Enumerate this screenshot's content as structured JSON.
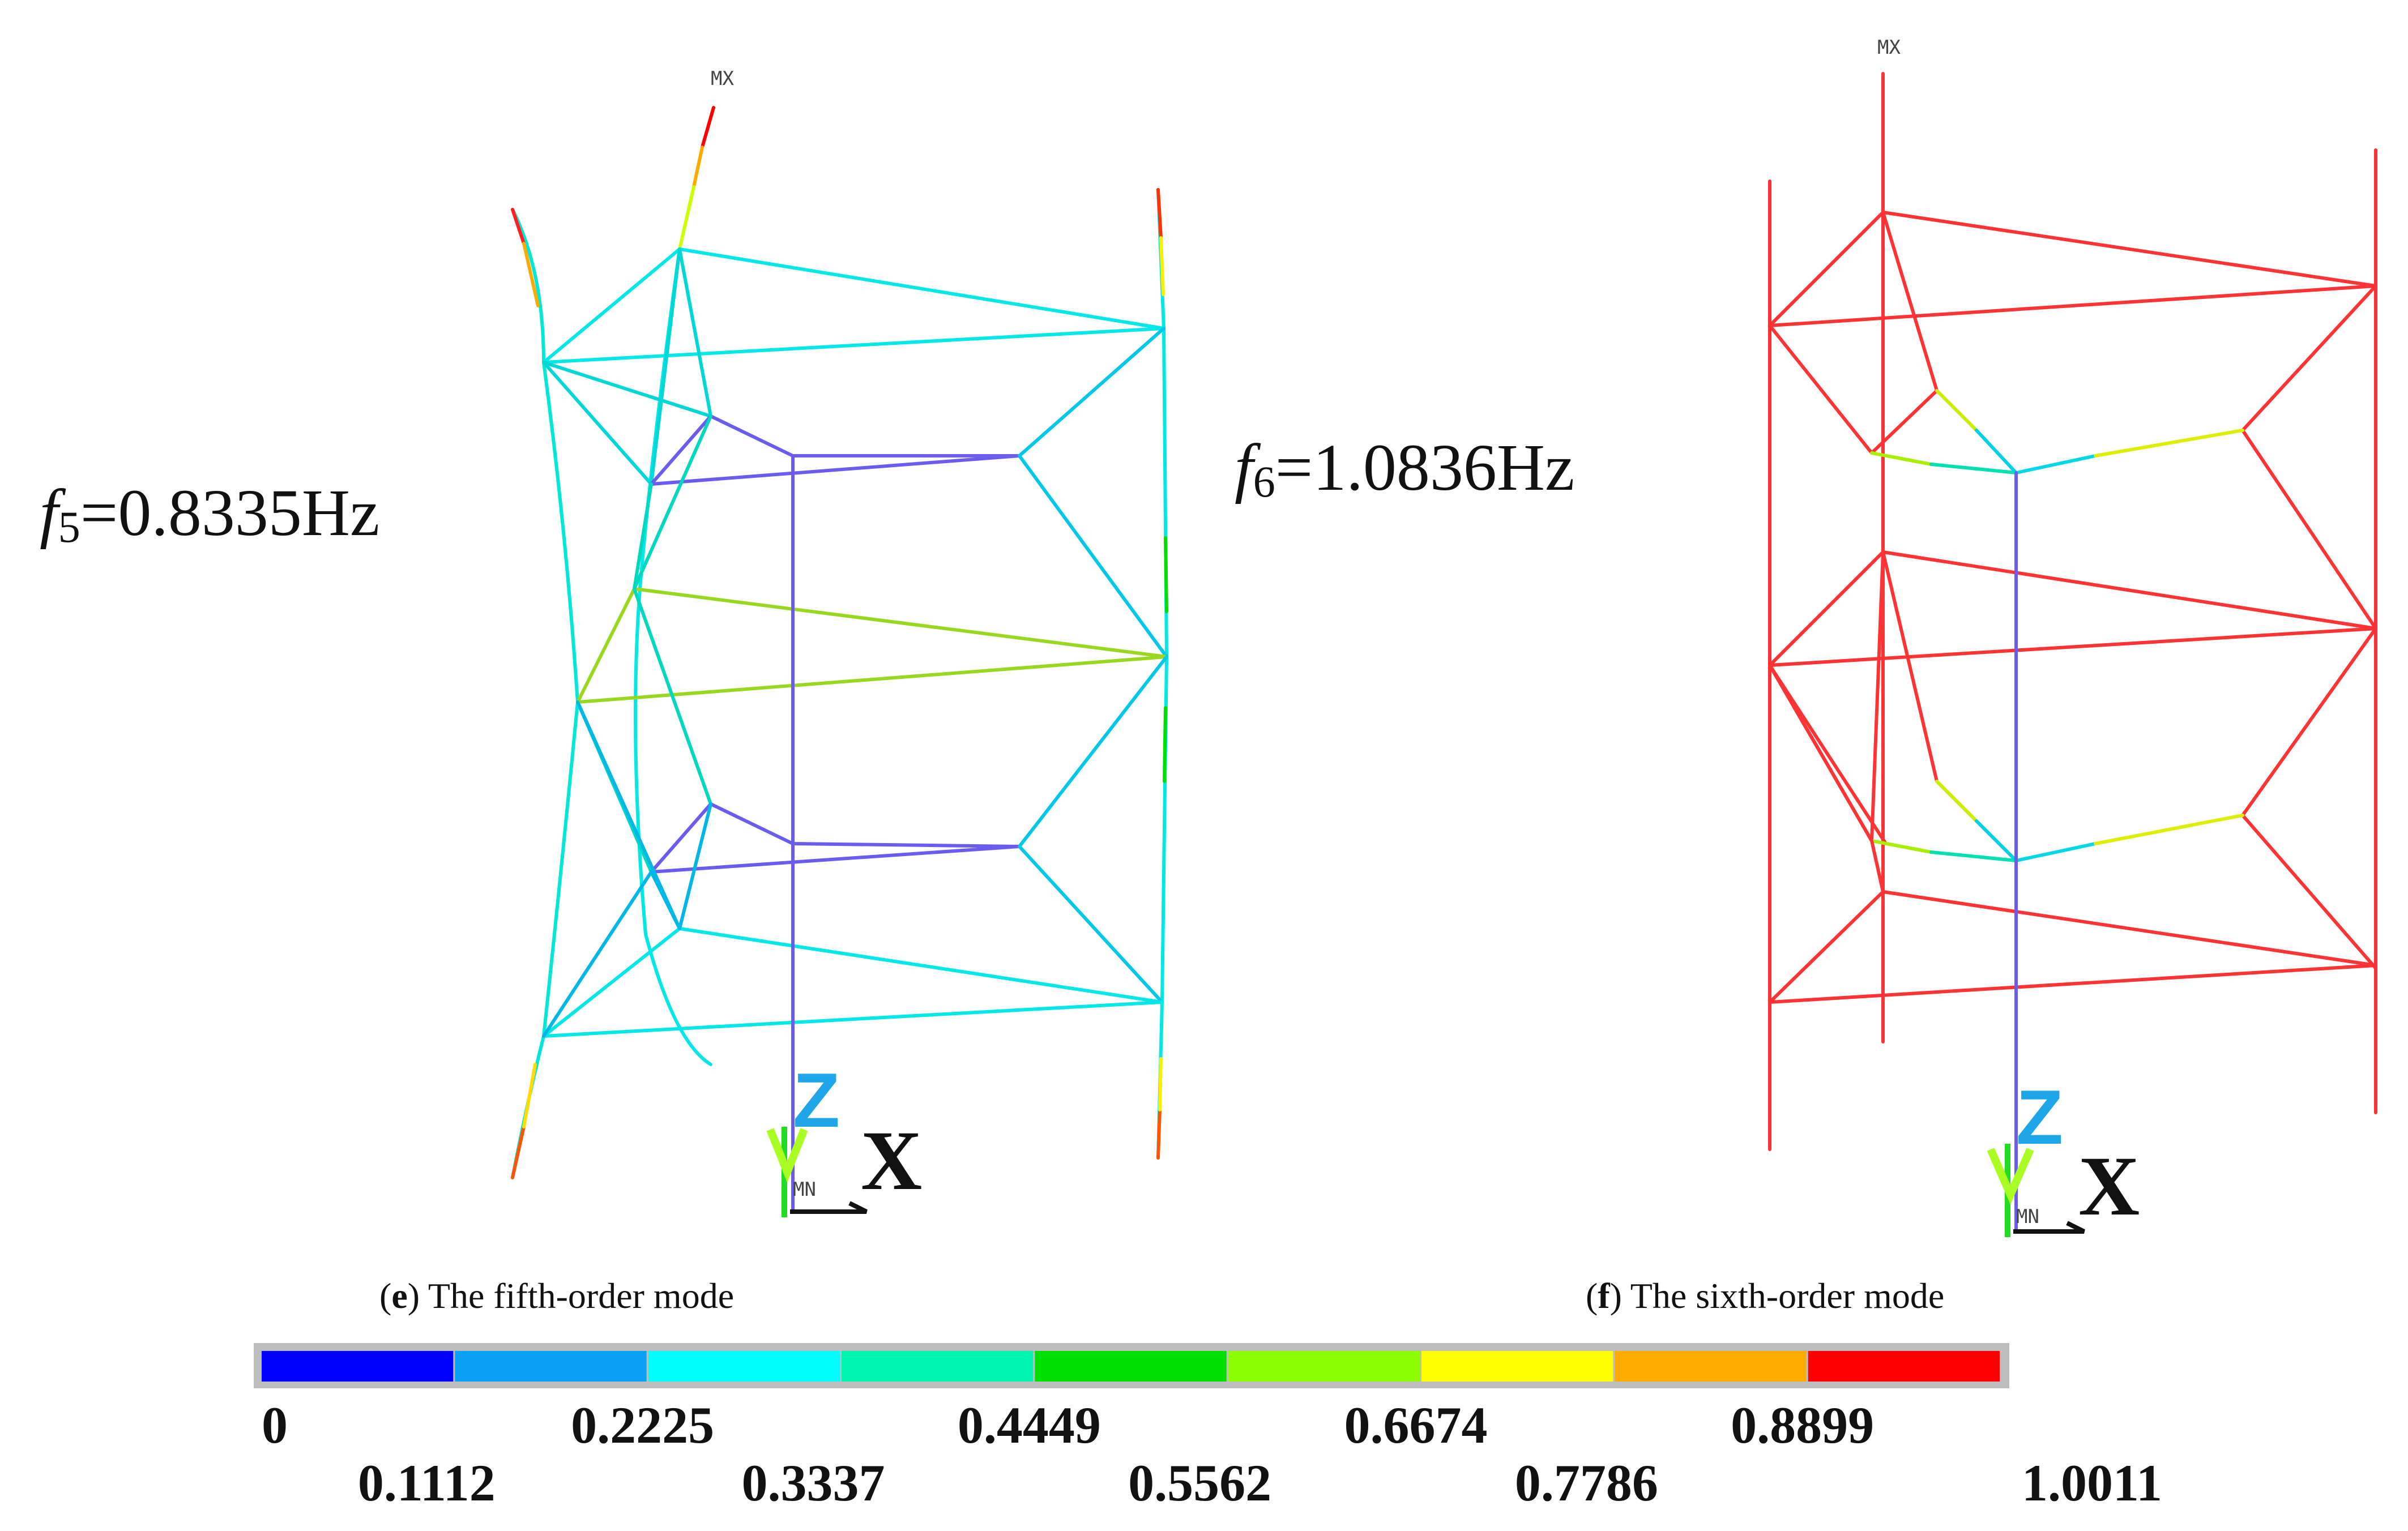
{
  "panels": {
    "fifth": {
      "label_f": "f",
      "label_sub": "5",
      "label_value": "=0.8335Hz",
      "marker_max": "MX",
      "marker_min": "MN",
      "axis_z": "Z",
      "axis_y": "Y",
      "axis_x": "X",
      "caption_open": "(",
      "caption_letter": "e",
      "caption_text": ") The fifth-order mode"
    },
    "sixth": {
      "label_f": "f",
      "label_sub": "6",
      "label_value": "=1.0836Hz",
      "marker_max": "MX",
      "marker_min": "MN",
      "axis_z": "Z",
      "axis_y": "Y",
      "axis_x": "X",
      "caption_open": "(",
      "caption_letter": "f",
      "caption_text": ") The sixth-order mode"
    }
  },
  "legend": {
    "colors": [
      "#0000ff",
      "#0aa0f5",
      "#00ffff",
      "#00f5b0",
      "#00e000",
      "#8cff00",
      "#ffff00",
      "#ffaa00",
      "#ff0000"
    ],
    "ticks_top": [
      "0",
      "0.2225",
      "0.4449",
      "0.6674",
      "0.8899"
    ],
    "ticks_bottom": [
      "0.1112",
      "0.3337",
      "0.5562",
      "0.7786",
      "1.0011"
    ]
  }
}
